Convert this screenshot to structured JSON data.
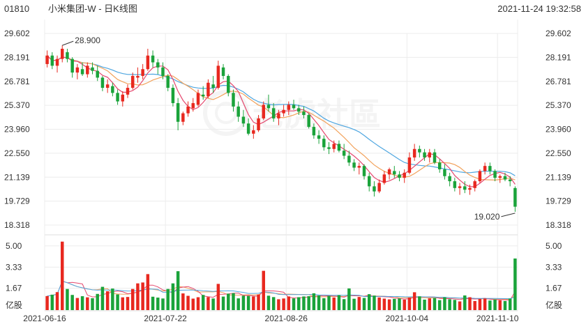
{
  "header": {
    "code": "01810",
    "name": "小米集团-W - 日K线图",
    "datetime": "2021-11-24 19:32:58"
  },
  "watermark": "老虎社區",
  "colors": {
    "up": "#e8281f",
    "down": "#1aa33a",
    "ma5": "#e5486e",
    "ma10": "#f2a25b",
    "ma20": "#4ea6e0",
    "grid": "#ececec",
    "text": "#333333"
  },
  "chart_data": {
    "type": "candlestick",
    "y_ticks": [
      "29.602",
      "28.191",
      "26.781",
      "25.370",
      "23.960",
      "22.550",
      "21.139",
      "19.729",
      "18.318"
    ],
    "ylim": [
      18.318,
      29.602
    ],
    "volume_ticks": [
      "5.00",
      "3.33",
      "1.67"
    ],
    "volume_unit": "亿股",
    "x_ticks": [
      "2021-06-16",
      "2021-07-22",
      "2021-08-26",
      "2021-10-04",
      "2021-11-10"
    ],
    "annotations": [
      {
        "label": "28.900",
        "kind": "max",
        "value": 28.9
      },
      {
        "label": "19.020",
        "kind": "min",
        "value": 19.02
      }
    ],
    "ohlc": [
      [
        27.8,
        28.6,
        27.6,
        28.3
      ],
      [
        28.3,
        28.5,
        27.5,
        27.7
      ],
      [
        27.7,
        28.3,
        27.3,
        28.1
      ],
      [
        28.1,
        28.9,
        27.9,
        28.7
      ],
      [
        28.5,
        28.7,
        27.9,
        28.1
      ],
      [
        28.1,
        28.2,
        27.0,
        27.3
      ],
      [
        27.3,
        27.8,
        26.9,
        27.6
      ],
      [
        27.5,
        27.9,
        27.1,
        27.2
      ],
      [
        27.2,
        27.9,
        27.0,
        27.7
      ],
      [
        27.6,
        27.9,
        27.2,
        27.4
      ],
      [
        27.4,
        27.7,
        26.8,
        27.0
      ],
      [
        27.0,
        27.1,
        26.2,
        26.4
      ],
      [
        26.4,
        26.9,
        26.1,
        26.6
      ],
      [
        26.5,
        26.7,
        25.9,
        26.1
      ],
      [
        26.1,
        26.3,
        25.4,
        25.6
      ],
      [
        25.6,
        26.2,
        25.3,
        26.0
      ],
      [
        26.0,
        26.6,
        25.8,
        26.4
      ],
      [
        26.4,
        27.3,
        26.3,
        27.1
      ],
      [
        27.0,
        27.6,
        26.7,
        27.1
      ],
      [
        27.1,
        27.8,
        26.9,
        27.5
      ],
      [
        27.5,
        28.7,
        27.4,
        28.3
      ],
      [
        28.3,
        28.6,
        27.6,
        27.9
      ],
      [
        27.9,
        28.1,
        27.2,
        27.6
      ],
      [
        27.6,
        27.9,
        26.9,
        27.1
      ],
      [
        27.1,
        27.2,
        26.2,
        26.4
      ],
      [
        26.4,
        26.6,
        25.3,
        25.5
      ],
      [
        25.5,
        25.8,
        23.9,
        24.4
      ],
      [
        24.4,
        25.0,
        24.2,
        24.9
      ],
      [
        24.9,
        25.6,
        24.7,
        25.3
      ],
      [
        25.2,
        25.8,
        25.0,
        25.5
      ],
      [
        25.4,
        26.3,
        25.3,
        26.1
      ],
      [
        26.0,
        26.5,
        25.7,
        25.9
      ],
      [
        25.9,
        26.9,
        25.8,
        26.7
      ],
      [
        26.6,
        27.1,
        26.1,
        26.4
      ],
      [
        26.4,
        28.0,
        26.3,
        27.7
      ],
      [
        27.6,
        27.8,
        26.9,
        27.1
      ],
      [
        27.1,
        27.2,
        25.9,
        26.1
      ],
      [
        26.1,
        26.3,
        25.0,
        25.3
      ],
      [
        25.3,
        25.6,
        24.4,
        24.7
      ],
      [
        24.7,
        25.1,
        24.1,
        24.3
      ],
      [
        24.3,
        24.6,
        23.6,
        23.7
      ],
      [
        23.7,
        24.2,
        23.4,
        23.9
      ],
      [
        23.9,
        24.8,
        23.8,
        24.6
      ],
      [
        24.6,
        25.6,
        24.5,
        25.4
      ],
      [
        25.4,
        26.0,
        25.0,
        25.2
      ],
      [
        25.2,
        25.5,
        24.4,
        24.6
      ],
      [
        24.6,
        25.1,
        24.2,
        24.9
      ],
      [
        24.9,
        25.4,
        24.7,
        25.1
      ],
      [
        25.1,
        25.6,
        24.8,
        25.4
      ],
      [
        25.4,
        25.7,
        25.1,
        25.2
      ],
      [
        25.2,
        25.4,
        24.8,
        25.0
      ],
      [
        25.0,
        25.3,
        24.6,
        24.8
      ],
      [
        24.8,
        24.9,
        24.0,
        24.1
      ],
      [
        24.1,
        24.3,
        23.4,
        23.6
      ],
      [
        23.6,
        23.9,
        23.1,
        23.4
      ],
      [
        23.4,
        23.6,
        22.7,
        22.9
      ],
      [
        22.9,
        23.2,
        22.5,
        22.8
      ],
      [
        22.8,
        23.3,
        22.6,
        23.1
      ],
      [
        23.1,
        23.3,
        22.6,
        22.7
      ],
      [
        22.7,
        23.1,
        22.2,
        22.4
      ],
      [
        22.4,
        22.7,
        21.8,
        22.0
      ],
      [
        22.0,
        22.2,
        21.5,
        21.7
      ],
      [
        21.7,
        22.0,
        21.3,
        21.8
      ],
      [
        21.8,
        21.9,
        21.0,
        21.2
      ],
      [
        21.2,
        21.4,
        20.3,
        20.6
      ],
      [
        20.6,
        20.9,
        20.0,
        20.3
      ],
      [
        20.3,
        21.0,
        20.2,
        20.8
      ],
      [
        20.8,
        21.5,
        20.7,
        21.3
      ],
      [
        21.3,
        21.7,
        21.0,
        21.6
      ],
      [
        21.5,
        21.8,
        21.1,
        21.3
      ],
      [
        21.3,
        21.5,
        20.9,
        21.1
      ],
      [
        21.1,
        21.6,
        20.8,
        21.4
      ],
      [
        21.4,
        22.6,
        21.3,
        22.3
      ],
      [
        22.3,
        23.1,
        22.1,
        22.8
      ],
      [
        22.8,
        23.0,
        22.3,
        22.6
      ],
      [
        22.6,
        22.8,
        22.1,
        22.3
      ],
      [
        22.3,
        22.8,
        22.0,
        22.6
      ],
      [
        22.6,
        22.8,
        21.9,
        22.0
      ],
      [
        22.0,
        22.2,
        21.4,
        21.6
      ],
      [
        21.6,
        21.9,
        21.0,
        21.2
      ],
      [
        21.2,
        21.4,
        20.6,
        20.9
      ],
      [
        20.9,
        21.1,
        20.3,
        20.5
      ],
      [
        20.5,
        20.8,
        20.1,
        20.6
      ],
      [
        20.6,
        20.9,
        20.2,
        20.4
      ],
      [
        20.4,
        20.7,
        20.1,
        20.5
      ],
      [
        20.5,
        21.0,
        20.3,
        20.9
      ],
      [
        20.9,
        21.6,
        20.8,
        21.5
      ],
      [
        21.5,
        22.0,
        21.3,
        21.8
      ],
      [
        21.8,
        22.0,
        21.3,
        21.5
      ],
      [
        21.5,
        21.6,
        20.9,
        21.1
      ],
      [
        21.1,
        21.3,
        20.8,
        21.2
      ],
      [
        21.2,
        21.4,
        20.9,
        21.0
      ],
      [
        21.0,
        21.2,
        20.6,
        20.9
      ],
      [
        20.5,
        20.6,
        19.1,
        19.4
      ]
    ],
    "volume": [
      1.05,
      1.16,
      1.36,
      5.34,
      1.61,
      1.14,
      0.9,
      1.04,
      0.95,
      0.88,
      1.22,
      1.78,
      1.43,
      1.64,
      1.18,
      0.95,
      0.98,
      1.61,
      2.05,
      2.12,
      2.78,
      1.0,
      0.93,
      0.86,
      1.61,
      2.05,
      3.01,
      1.26,
      1.07,
      0.85,
      0.96,
      1.14,
      0.97,
      0.86,
      2.01,
      1.01,
      1.24,
      1.28,
      0.87,
      1.08,
      1.06,
      1.02,
      1.17,
      3.04,
      1.08,
      0.97,
      0.8,
      0.86,
      1.02,
      0.87,
      0.96,
      1.02,
      1.04,
      1.27,
      1.1,
      0.88,
      1.06,
      0.94,
      1.12,
      0.81,
      1.65,
      0.84,
      0.98,
      0.9,
      1.2,
      1.09,
      0.94,
      0.85,
      0.79,
      0.83,
      0.86,
      0.77,
      0.93,
      1.35,
      1.03,
      0.77,
      0.87,
      0.9,
      0.73,
      0.95,
      0.8,
      0.75,
      0.63,
      1.1,
      0.96,
      0.66,
      0.82,
      0.86,
      0.7,
      0.78,
      0.72,
      0.66,
      0.85,
      4.01
    ]
  }
}
